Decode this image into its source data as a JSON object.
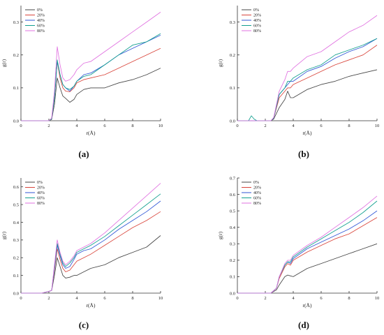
{
  "colors": {
    "0%": "#444444",
    "20%": "#d9443a",
    "40%": "#2f56d6",
    "60%": "#119f8e",
    "80%": "#e070e0"
  },
  "chart_data": [
    {
      "type": "line",
      "panel": "(a)",
      "xlabel": "r(Å)",
      "ylabel": "g(r)",
      "xlim": [
        0,
        10
      ],
      "ylim": [
        0,
        0.35
      ],
      "xticks": [
        0,
        2,
        4,
        6,
        8,
        10
      ],
      "yticks": [
        0.0,
        0.1,
        0.2,
        0.3
      ],
      "legend_position": "top-left",
      "series": [
        {
          "name": "0%",
          "x": [
            0,
            1.5,
            2.0,
            2.2,
            2.4,
            2.6,
            2.8,
            3.0,
            3.2,
            3.5,
            3.8,
            4.0,
            4.5,
            5,
            6,
            7,
            8,
            9,
            10
          ],
          "y": [
            0,
            0,
            0,
            0.004,
            0.05,
            0.13,
            0.1,
            0.075,
            0.068,
            0.056,
            0.065,
            0.08,
            0.095,
            0.1,
            0.1,
            0.115,
            0.125,
            0.14,
            0.16
          ]
        },
        {
          "name": "20%",
          "x": [
            0,
            1.5,
            2.0,
            2.2,
            2.4,
            2.6,
            2.8,
            3.0,
            3.2,
            3.5,
            3.8,
            4.0,
            4.5,
            5,
            6,
            7,
            8,
            9,
            10
          ],
          "y": [
            0,
            0,
            0,
            0.006,
            0.07,
            0.18,
            0.13,
            0.1,
            0.09,
            0.088,
            0.1,
            0.115,
            0.125,
            0.13,
            0.14,
            0.16,
            0.18,
            0.2,
            0.22
          ]
        },
        {
          "name": "40%",
          "x": [
            0,
            1.5,
            2.0,
            2.2,
            2.4,
            2.6,
            2.8,
            3.0,
            3.2,
            3.5,
            3.8,
            4.0,
            4.5,
            5,
            6,
            7,
            8,
            9,
            10
          ],
          "y": [
            0,
            0,
            0,
            0.006,
            0.07,
            0.18,
            0.14,
            0.11,
            0.1,
            0.09,
            0.105,
            0.12,
            0.14,
            0.145,
            0.17,
            0.2,
            0.22,
            0.24,
            0.26
          ]
        },
        {
          "name": "60%",
          "x": [
            0,
            1.5,
            2.0,
            2.2,
            2.4,
            2.6,
            2.8,
            3.0,
            3.2,
            3.5,
            3.8,
            4.0,
            4.5,
            5,
            6,
            7,
            8,
            9,
            10
          ],
          "y": [
            0,
            0,
            0,
            0.006,
            0.07,
            0.185,
            0.14,
            0.11,
            0.1,
            0.095,
            0.105,
            0.12,
            0.135,
            0.14,
            0.17,
            0.2,
            0.23,
            0.24,
            0.265
          ]
        },
        {
          "name": "80%",
          "x": [
            0,
            1.5,
            2.0,
            2.2,
            2.4,
            2.6,
            2.8,
            3.0,
            3.2,
            3.5,
            3.8,
            4.0,
            4.5,
            5,
            6,
            7,
            8,
            9,
            10
          ],
          "y": [
            0,
            0,
            0,
            0.008,
            0.09,
            0.225,
            0.17,
            0.13,
            0.12,
            0.125,
            0.14,
            0.155,
            0.175,
            0.18,
            0.21,
            0.24,
            0.27,
            0.3,
            0.33
          ]
        }
      ]
    },
    {
      "type": "line",
      "panel": "(b)",
      "xlabel": "r(Å)",
      "ylabel": "g(r)",
      "xlim": [
        0,
        10
      ],
      "ylim": [
        0,
        0.35
      ],
      "xticks": [
        0,
        2,
        4,
        6,
        8,
        10
      ],
      "yticks": [
        0.0,
        0.1,
        0.2,
        0.3
      ],
      "legend_position": "top-left",
      "series": [
        {
          "name": "0%",
          "x": [
            0,
            2.0,
            2.4,
            2.6,
            3.0,
            3.4,
            3.6,
            3.8,
            4,
            5,
            6,
            7,
            8,
            9,
            10
          ],
          "y": [
            0,
            0,
            0,
            0.005,
            0.04,
            0.065,
            0.09,
            0.07,
            0.07,
            0.095,
            0.11,
            0.12,
            0.135,
            0.145,
            0.155
          ]
        },
        {
          "name": "20%",
          "x": [
            0,
            2.0,
            2.4,
            2.6,
            3.0,
            3.4,
            3.6,
            3.8,
            4,
            5,
            6,
            7,
            8,
            9,
            10
          ],
          "y": [
            0,
            0,
            0,
            0.008,
            0.07,
            0.09,
            0.1,
            0.1,
            0.11,
            0.13,
            0.15,
            0.17,
            0.185,
            0.2,
            0.23
          ]
        },
        {
          "name": "40%",
          "x": [
            0,
            2.0,
            2.4,
            2.6,
            3.0,
            3.4,
            3.6,
            3.8,
            4,
            5,
            6,
            7,
            8,
            9,
            10
          ],
          "y": [
            0,
            0,
            0,
            0.008,
            0.08,
            0.1,
            0.11,
            0.12,
            0.12,
            0.15,
            0.165,
            0.19,
            0.21,
            0.225,
            0.25
          ]
        },
        {
          "name": "60%",
          "x": [
            0,
            0.8,
            1.0,
            1.2,
            1.4,
            2.0,
            2.4,
            2.6,
            3.0,
            3.4,
            3.6,
            3.8,
            4,
            5,
            6,
            7,
            8,
            9,
            10
          ],
          "y": [
            0,
            0,
            0.015,
            0.005,
            0,
            0,
            0,
            0.008,
            0.08,
            0.1,
            0.12,
            0.12,
            0.13,
            0.155,
            0.17,
            0.2,
            0.215,
            0.23,
            0.25
          ]
        },
        {
          "name": "80%",
          "x": [
            0,
            2.0,
            2.4,
            2.6,
            3.0,
            3.4,
            3.6,
            3.8,
            4,
            5,
            6,
            7,
            8,
            9,
            10
          ],
          "y": [
            0,
            0,
            0,
            0.01,
            0.09,
            0.125,
            0.15,
            0.15,
            0.16,
            0.195,
            0.21,
            0.24,
            0.27,
            0.29,
            0.32
          ]
        }
      ]
    },
    {
      "type": "line",
      "panel": "(c)",
      "xlabel": "r(Å)",
      "ylabel": "g(r)",
      "xlim": [
        0,
        10
      ],
      "ylim": [
        0,
        0.65
      ],
      "xticks": [
        0,
        2,
        4,
        6,
        8,
        10
      ],
      "yticks": [
        0.0,
        0.1,
        0.2,
        0.3,
        0.4,
        0.5,
        0.6
      ],
      "legend_position": "top-left",
      "series": [
        {
          "name": "0%",
          "x": [
            0,
            1.5,
            2.0,
            2.2,
            2.4,
            2.6,
            2.8,
            3.0,
            3.2,
            3.5,
            3.8,
            4.0,
            4.5,
            5,
            6,
            7,
            8,
            9,
            10
          ],
          "y": [
            0,
            0,
            0.01,
            0.015,
            0.1,
            0.2,
            0.15,
            0.1,
            0.085,
            0.09,
            0.1,
            0.1,
            0.12,
            0.14,
            0.16,
            0.2,
            0.23,
            0.26,
            0.325
          ]
        },
        {
          "name": "20%",
          "x": [
            0,
            1.5,
            2.0,
            2.2,
            2.4,
            2.6,
            2.8,
            3.0,
            3.2,
            3.5,
            3.8,
            4.0,
            4.5,
            5,
            6,
            7,
            8,
            9,
            10
          ],
          "y": [
            0,
            0,
            0.01,
            0.015,
            0.13,
            0.25,
            0.19,
            0.14,
            0.12,
            0.13,
            0.16,
            0.18,
            0.2,
            0.22,
            0.27,
            0.32,
            0.37,
            0.41,
            0.46
          ]
        },
        {
          "name": "40%",
          "x": [
            0,
            1.5,
            2.0,
            2.2,
            2.4,
            2.6,
            2.8,
            3.0,
            3.2,
            3.5,
            3.8,
            4.0,
            4.5,
            5,
            6,
            7,
            8,
            9,
            10
          ],
          "y": [
            0,
            0,
            0.01,
            0.015,
            0.14,
            0.27,
            0.21,
            0.16,
            0.14,
            0.15,
            0.19,
            0.22,
            0.24,
            0.25,
            0.3,
            0.36,
            0.41,
            0.46,
            0.52
          ]
        },
        {
          "name": "60%",
          "x": [
            0,
            1.5,
            2.0,
            2.2,
            2.4,
            2.6,
            2.8,
            3.0,
            3.2,
            3.5,
            3.8,
            4.0,
            4.5,
            5,
            6,
            7,
            8,
            9,
            10
          ],
          "y": [
            0,
            0,
            0.01,
            0.015,
            0.15,
            0.28,
            0.22,
            0.17,
            0.15,
            0.17,
            0.2,
            0.23,
            0.25,
            0.27,
            0.32,
            0.38,
            0.44,
            0.5,
            0.56
          ]
        },
        {
          "name": "80%",
          "x": [
            0,
            1.5,
            2.0,
            2.2,
            2.4,
            2.6,
            2.8,
            3.0,
            3.2,
            3.5,
            3.8,
            4.0,
            4.5,
            5,
            6,
            7,
            8,
            9,
            10
          ],
          "y": [
            0,
            0,
            0.01,
            0.015,
            0.16,
            0.3,
            0.23,
            0.18,
            0.16,
            0.18,
            0.21,
            0.24,
            0.26,
            0.28,
            0.34,
            0.41,
            0.48,
            0.55,
            0.62
          ]
        }
      ]
    },
    {
      "type": "line",
      "panel": "(d)",
      "xlabel": "r(Å)",
      "ylabel": "g(r)",
      "xlim": [
        0,
        10
      ],
      "ylim": [
        0,
        0.7
      ],
      "xticks": [
        0,
        2,
        4,
        6,
        8,
        10
      ],
      "yticks": [
        0.0,
        0.1,
        0.2,
        0.3,
        0.4,
        0.5,
        0.6,
        0.7
      ],
      "legend_position": "top-left",
      "series": [
        {
          "name": "0%",
          "x": [
            0,
            2.4,
            2.8,
            3.0,
            3.4,
            3.6,
            3.8,
            4,
            5,
            6,
            7,
            8,
            9,
            10
          ],
          "y": [
            0,
            0,
            0.02,
            0.05,
            0.1,
            0.11,
            0.105,
            0.1,
            0.15,
            0.18,
            0.21,
            0.24,
            0.27,
            0.3
          ]
        },
        {
          "name": "20%",
          "x": [
            0,
            2.4,
            2.8,
            3.0,
            3.4,
            3.6,
            3.8,
            4,
            5,
            6,
            7,
            8,
            9,
            10
          ],
          "y": [
            0,
            0,
            0.03,
            0.09,
            0.16,
            0.18,
            0.17,
            0.2,
            0.25,
            0.29,
            0.33,
            0.36,
            0.41,
            0.46
          ]
        },
        {
          "name": "40%",
          "x": [
            0,
            2.4,
            2.8,
            3.0,
            3.4,
            3.6,
            3.8,
            4,
            5,
            6,
            7,
            8,
            9,
            10
          ],
          "y": [
            0,
            0,
            0.03,
            0.1,
            0.17,
            0.19,
            0.18,
            0.21,
            0.27,
            0.31,
            0.35,
            0.39,
            0.44,
            0.5
          ]
        },
        {
          "name": "60%",
          "x": [
            0,
            2.4,
            2.8,
            3.0,
            3.4,
            3.6,
            3.8,
            4,
            5,
            6,
            7,
            8,
            9,
            10
          ],
          "y": [
            0,
            0,
            0.03,
            0.1,
            0.17,
            0.19,
            0.19,
            0.22,
            0.28,
            0.33,
            0.38,
            0.43,
            0.49,
            0.56
          ]
        },
        {
          "name": "80%",
          "x": [
            0,
            2.4,
            2.8,
            3.0,
            3.4,
            3.6,
            3.8,
            4,
            5,
            6,
            7,
            8,
            9,
            10
          ],
          "y": [
            0,
            0,
            0.03,
            0.1,
            0.18,
            0.2,
            0.2,
            0.23,
            0.29,
            0.34,
            0.4,
            0.46,
            0.52,
            0.59
          ]
        }
      ]
    }
  ]
}
